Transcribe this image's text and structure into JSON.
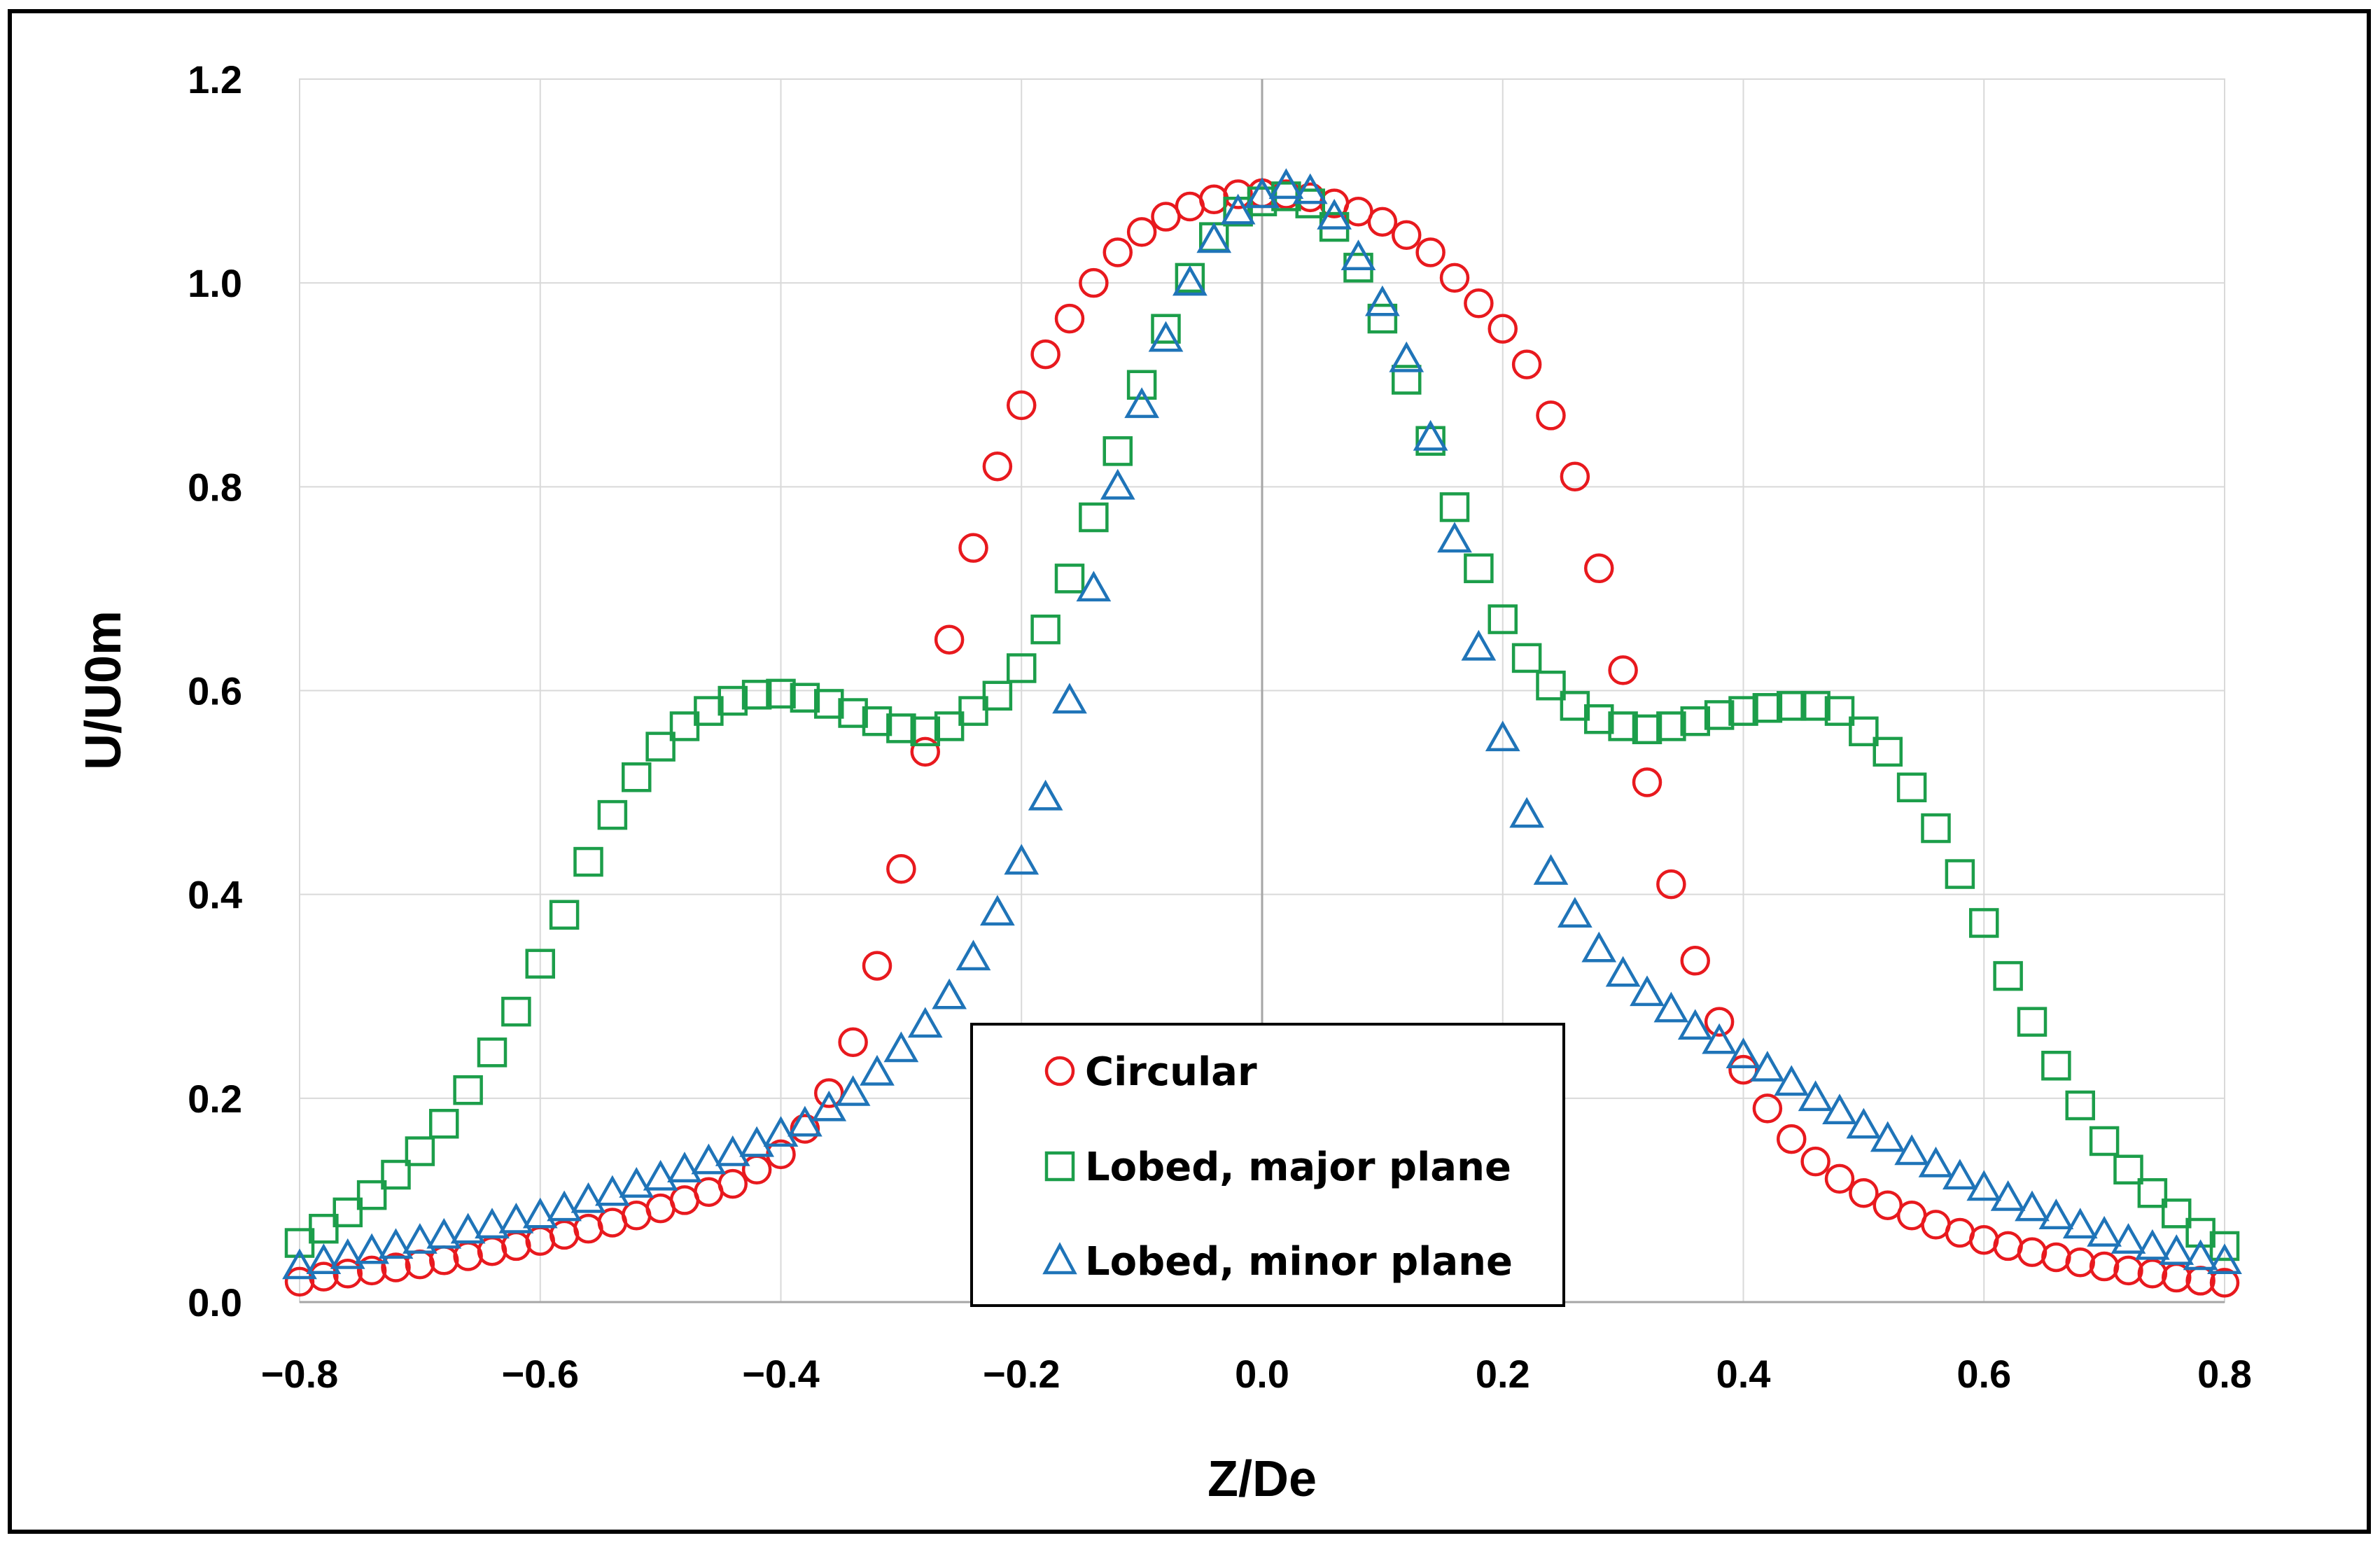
{
  "chart_data": {
    "type": "scatter",
    "title": "",
    "xlabel": "Z/De",
    "ylabel": "U/U0m",
    "xlim": [
      -0.8,
      0.8
    ],
    "ylim": [
      0.0,
      1.2
    ],
    "xticks": [
      -0.8,
      -0.6,
      -0.4,
      -0.2,
      0.0,
      0.2,
      0.4,
      0.6,
      0.8
    ],
    "xtick_labels": [
      "−0.8",
      "−0.6",
      "−0.4",
      "−0.2",
      "0.0",
      "0.2",
      "0.4",
      "0.6",
      "0.8"
    ],
    "yticks": [
      0.0,
      0.2,
      0.4,
      0.6,
      0.8,
      1.0,
      1.2
    ],
    "ytick_labels": [
      "0.0",
      "0.2",
      "0.4",
      "0.6",
      "0.8",
      "1.0",
      "1.2"
    ],
    "grid": true,
    "legend_position": "bottom-center",
    "series": [
      {
        "name": "Circular",
        "marker": "circle",
        "color": "#e8191e",
        "x": [
          -0.8,
          -0.78,
          -0.76,
          -0.74,
          -0.72,
          -0.7,
          -0.68,
          -0.66,
          -0.64,
          -0.62,
          -0.6,
          -0.58,
          -0.56,
          -0.54,
          -0.52,
          -0.5,
          -0.48,
          -0.46,
          -0.44,
          -0.42,
          -0.4,
          -0.38,
          -0.36,
          -0.34,
          -0.32,
          -0.3,
          -0.28,
          -0.26,
          -0.24,
          -0.22,
          -0.2,
          -0.18,
          -0.16,
          -0.14,
          -0.12,
          -0.1,
          -0.08,
          -0.06,
          -0.04,
          -0.02,
          0.0,
          0.02,
          0.04,
          0.06,
          0.08,
          0.1,
          0.12,
          0.14,
          0.16,
          0.18,
          0.2,
          0.22,
          0.24,
          0.26,
          0.28,
          0.3,
          0.32,
          0.34,
          0.36,
          0.38,
          0.4,
          0.42,
          0.44,
          0.46,
          0.48,
          0.5,
          0.52,
          0.54,
          0.56,
          0.58,
          0.6,
          0.62,
          0.64,
          0.66,
          0.68,
          0.7,
          0.72,
          0.74,
          0.76,
          0.78,
          0.8
        ],
        "y": [
          0.02,
          0.025,
          0.028,
          0.031,
          0.034,
          0.037,
          0.041,
          0.045,
          0.05,
          0.055,
          0.06,
          0.066,
          0.072,
          0.078,
          0.085,
          0.092,
          0.1,
          0.108,
          0.116,
          0.13,
          0.145,
          0.17,
          0.205,
          0.255,
          0.33,
          0.425,
          0.54,
          0.65,
          0.74,
          0.82,
          0.88,
          0.93,
          0.965,
          1.0,
          1.03,
          1.05,
          1.065,
          1.075,
          1.082,
          1.087,
          1.088,
          1.087,
          1.084,
          1.078,
          1.07,
          1.06,
          1.047,
          1.03,
          1.005,
          0.98,
          0.955,
          0.92,
          0.87,
          0.81,
          0.72,
          0.62,
          0.51,
          0.41,
          0.335,
          0.275,
          0.228,
          0.19,
          0.16,
          0.138,
          0.121,
          0.107,
          0.095,
          0.085,
          0.076,
          0.068,
          0.061,
          0.055,
          0.049,
          0.044,
          0.039,
          0.035,
          0.031,
          0.028,
          0.024,
          0.021,
          0.019
        ]
      },
      {
        "name": "Lobed, major plane",
        "marker": "square",
        "color": "#1c9e4a",
        "x": [
          -0.8,
          -0.78,
          -0.76,
          -0.74,
          -0.72,
          -0.7,
          -0.68,
          -0.66,
          -0.64,
          -0.62,
          -0.6,
          -0.58,
          -0.56,
          -0.54,
          -0.52,
          -0.5,
          -0.48,
          -0.46,
          -0.44,
          -0.42,
          -0.4,
          -0.38,
          -0.36,
          -0.34,
          -0.32,
          -0.3,
          -0.28,
          -0.26,
          -0.24,
          -0.22,
          -0.2,
          -0.18,
          -0.16,
          -0.14,
          -0.12,
          -0.1,
          -0.08,
          -0.06,
          -0.04,
          -0.02,
          0.0,
          0.02,
          0.04,
          0.06,
          0.08,
          0.1,
          0.12,
          0.14,
          0.16,
          0.18,
          0.2,
          0.22,
          0.24,
          0.26,
          0.28,
          0.3,
          0.32,
          0.34,
          0.36,
          0.38,
          0.4,
          0.42,
          0.44,
          0.46,
          0.48,
          0.5,
          0.52,
          0.54,
          0.56,
          0.58,
          0.6,
          0.62,
          0.64,
          0.66,
          0.68,
          0.7,
          0.72,
          0.74,
          0.76,
          0.78,
          0.8
        ],
        "y": [
          0.058,
          0.072,
          0.088,
          0.105,
          0.125,
          0.148,
          0.175,
          0.208,
          0.245,
          0.285,
          0.332,
          0.38,
          0.432,
          0.478,
          0.515,
          0.545,
          0.565,
          0.58,
          0.59,
          0.596,
          0.597,
          0.593,
          0.587,
          0.578,
          0.57,
          0.563,
          0.56,
          0.565,
          0.58,
          0.595,
          0.622,
          0.66,
          0.71,
          0.77,
          0.835,
          0.9,
          0.955,
          1.005,
          1.045,
          1.07,
          1.08,
          1.085,
          1.078,
          1.055,
          1.015,
          0.965,
          0.905,
          0.845,
          0.78,
          0.72,
          0.67,
          0.632,
          0.605,
          0.585,
          0.572,
          0.565,
          0.562,
          0.565,
          0.57,
          0.576,
          0.58,
          0.583,
          0.585,
          0.585,
          0.58,
          0.56,
          0.54,
          0.505,
          0.465,
          0.42,
          0.372,
          0.32,
          0.275,
          0.232,
          0.193,
          0.158,
          0.13,
          0.107,
          0.087,
          0.068,
          0.055
        ]
      },
      {
        "name": "Lobed, minor plane",
        "marker": "triangle",
        "color": "#1f74b8",
        "x": [
          -0.8,
          -0.78,
          -0.76,
          -0.74,
          -0.72,
          -0.7,
          -0.68,
          -0.66,
          -0.64,
          -0.62,
          -0.6,
          -0.58,
          -0.56,
          -0.54,
          -0.52,
          -0.5,
          -0.48,
          -0.46,
          -0.44,
          -0.42,
          -0.4,
          -0.38,
          -0.36,
          -0.34,
          -0.32,
          -0.3,
          -0.28,
          -0.26,
          -0.24,
          -0.22,
          -0.2,
          -0.18,
          -0.16,
          -0.14,
          -0.12,
          -0.1,
          -0.08,
          -0.06,
          -0.04,
          -0.02,
          0.0,
          0.02,
          0.04,
          0.06,
          0.08,
          0.1,
          0.12,
          0.14,
          0.16,
          0.18,
          0.2,
          0.22,
          0.24,
          0.26,
          0.28,
          0.3,
          0.32,
          0.34,
          0.36,
          0.38,
          0.4,
          0.42,
          0.44,
          0.46,
          0.48,
          0.5,
          0.52,
          0.54,
          0.56,
          0.58,
          0.6,
          0.62,
          0.64,
          0.66,
          0.68,
          0.7,
          0.72,
          0.74,
          0.76,
          0.78,
          0.8
        ],
        "y": [
          0.035,
          0.04,
          0.045,
          0.05,
          0.055,
          0.06,
          0.065,
          0.07,
          0.075,
          0.08,
          0.085,
          0.092,
          0.1,
          0.107,
          0.115,
          0.122,
          0.13,
          0.138,
          0.146,
          0.155,
          0.165,
          0.175,
          0.19,
          0.205,
          0.225,
          0.248,
          0.272,
          0.3,
          0.338,
          0.382,
          0.432,
          0.495,
          0.59,
          0.7,
          0.8,
          0.88,
          0.945,
          1.0,
          1.042,
          1.07,
          1.086,
          1.095,
          1.09,
          1.065,
          1.025,
          0.98,
          0.925,
          0.848,
          0.748,
          0.642,
          0.553,
          0.478,
          0.422,
          0.38,
          0.346,
          0.322,
          0.303,
          0.287,
          0.27,
          0.256,
          0.242,
          0.229,
          0.215,
          0.2,
          0.187,
          0.173,
          0.16,
          0.147,
          0.135,
          0.123,
          0.112,
          0.102,
          0.092,
          0.084,
          0.075,
          0.067,
          0.06,
          0.054,
          0.049,
          0.044,
          0.04
        ]
      }
    ]
  }
}
